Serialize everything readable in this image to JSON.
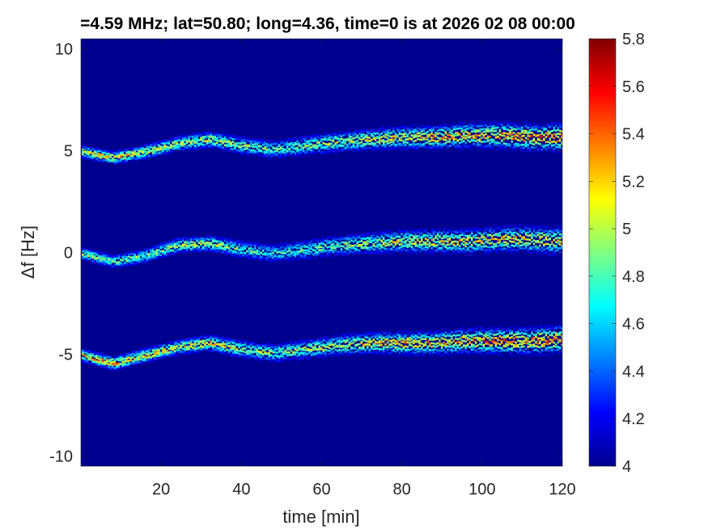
{
  "chart_data": {
    "type": "heatmap",
    "title": "=4.59 MHz;  lat=50.80; long=4.36, time=0 is at 2026 02 08 00:00",
    "xlabel": "time [min]",
    "ylabel": "Δf [Hz]",
    "xlim": [
      0,
      120
    ],
    "ylim": [
      -10.5,
      10.5
    ],
    "xticks": [
      20,
      40,
      60,
      80,
      100,
      120
    ],
    "xtick_labels": [
      "20",
      "40",
      "60",
      "80",
      "100",
      "120"
    ],
    "yticks": [
      10,
      5,
      0,
      -5,
      -10
    ],
    "ytick_labels": [
      "10",
      "5",
      "0",
      "-5",
      "-10"
    ],
    "colorbar": {
      "range": [
        4,
        5.8
      ],
      "ticks": [
        5.8,
        5.6,
        5.4,
        5.2,
        5,
        4.8,
        4.6,
        4.4,
        4.2,
        4
      ],
      "tick_labels": [
        "5.8",
        "5.6",
        "5.4",
        "5.2",
        "5",
        "4.8",
        "4.6",
        "4.4",
        "4.2",
        "4"
      ],
      "colormap": "jet"
    },
    "background_value": 4.0,
    "series": [
      {
        "time_min": [
          0,
          8,
          16,
          24,
          32,
          40,
          48,
          56,
          64,
          72,
          80,
          88,
          96,
          104,
          112,
          120
        ],
        "delta_f_hz": [
          5.0,
          4.7,
          5.0,
          5.4,
          5.6,
          5.3,
          5.1,
          5.3,
          5.5,
          5.6,
          5.7,
          5.7,
          5.8,
          5.8,
          5.7,
          5.7
        ],
        "peak_value": [
          5.3,
          5.4,
          5.3,
          5.2,
          5.3,
          5.1,
          5.0,
          5.1,
          5.2,
          5.3,
          5.4,
          5.5,
          5.5,
          5.6,
          5.6,
          5.6
        ]
      },
      {
        "time_min": [
          0,
          8,
          16,
          24,
          32,
          40,
          48,
          56,
          64,
          72,
          80,
          88,
          96,
          104,
          112,
          120
        ],
        "delta_f_hz": [
          0.0,
          -0.4,
          -0.1,
          0.4,
          0.5,
          0.2,
          0.0,
          0.2,
          0.4,
          0.5,
          0.6,
          0.6,
          0.6,
          0.7,
          0.7,
          0.6
        ],
        "peak_value": [
          5.2,
          5.1,
          5.1,
          5.2,
          5.2,
          5.0,
          4.9,
          5.0,
          5.1,
          5.2,
          5.3,
          5.4,
          5.4,
          5.4,
          5.4,
          5.4
        ]
      },
      {
        "time_min": [
          0,
          8,
          16,
          24,
          32,
          40,
          48,
          56,
          64,
          72,
          80,
          88,
          96,
          104,
          112,
          120
        ],
        "delta_f_hz": [
          -5.0,
          -5.4,
          -5.0,
          -4.6,
          -4.4,
          -4.7,
          -4.9,
          -4.7,
          -4.5,
          -4.4,
          -4.4,
          -4.4,
          -4.3,
          -4.3,
          -4.3,
          -4.2
        ],
        "peak_value": [
          5.6,
          5.6,
          5.4,
          5.3,
          5.4,
          5.2,
          5.1,
          5.2,
          5.3,
          5.4,
          5.5,
          5.5,
          5.6,
          5.6,
          5.6,
          5.6
        ]
      }
    ]
  }
}
